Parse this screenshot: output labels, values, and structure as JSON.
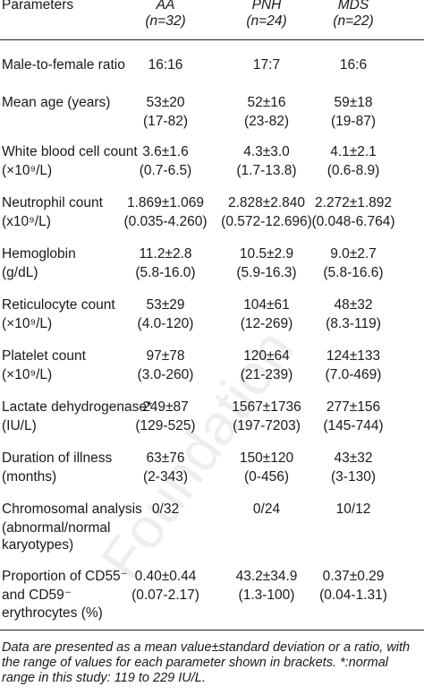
{
  "header": {
    "parameters": "Parameters",
    "aa": "AA",
    "aa_n": "(n=32)",
    "pnh": "PNH",
    "pnh_n": "(n=24)",
    "mds": "MDS",
    "mds_n": "(n=22)"
  },
  "watermark": "Foundation",
  "rows": [
    {
      "label1": "Male-to-female ratio",
      "label2": "",
      "label3": "",
      "aa1": "16:16",
      "aa2": "",
      "pnh1": "17:7",
      "pnh2": "",
      "mds1": "16:6",
      "mds2": ""
    },
    {
      "label1": "Mean age (years)",
      "label2": "",
      "label3": "",
      "aa1": "53±20",
      "aa2": "(17-82)",
      "pnh1": "52±16",
      "pnh2": "(23-82)",
      "mds1": "59±18",
      "mds2": "(19-87)"
    },
    {
      "label1": "White blood cell count",
      "label2": "(×10⁹/L)",
      "label3": "",
      "aa1": "3.6±1.6",
      "aa2": "(0.7-6.5)",
      "pnh1": "4.3±3.0",
      "pnh2": "(1.7-13.8)",
      "mds1": "4.1±2.1",
      "mds2": "(0.6-8.9)"
    },
    {
      "label1": "Neutrophil count",
      "label2": "(x10⁹/L)",
      "label3": "",
      "aa1": "1.869±1.069",
      "aa2": "(0.035-4.260)",
      "pnh1": "2.828±2.840",
      "pnh2": "(0.572-12.696)",
      "mds1": "2.272±1.892",
      "mds2": "(0.048-6.764)"
    },
    {
      "label1": "Hemoglobin",
      "label2": "(g/dL)",
      "label3": "",
      "aa1": "11.2±2.8",
      "aa2": "(5.8-16.0)",
      "pnh1": "10.5±2.9",
      "pnh2": "(5.9-16.3)",
      "mds1": "9.0±2.7",
      "mds2": "(5.8-16.6)"
    },
    {
      "label1": "Reticulocyte count",
      "label2": "(×10⁹/L)",
      "label3": "",
      "aa1": "53±29",
      "aa2": "(4.0-120)",
      "pnh1": "104±61",
      "pnh2": "(12-269)",
      "mds1": "48±32",
      "mds2": "(8.3-119)"
    },
    {
      "label1": "Platelet count",
      "label2": "(×10⁹/L)",
      "label3": "",
      "aa1": "97±78",
      "aa2": "(3.0-260)",
      "pnh1": "120±64",
      "pnh2": "(21-239)",
      "mds1": "124±133",
      "mds2": "(7.0-469)"
    },
    {
      "label1": "Lactate dehydrogenase*",
      "label2": "(IU/L)",
      "label3": "",
      "aa1": "249±87",
      "aa2": "(129-525)",
      "pnh1": "1567±1736",
      "pnh2": "(197-7203)",
      "mds1": "277±156",
      "mds2": "(145-744)"
    },
    {
      "label1": "Duration of illness",
      "label2": "(months)",
      "label3": "",
      "aa1": "63±76",
      "aa2": "(2-343)",
      "pnh1": "150±120",
      "pnh2": "(0-456)",
      "mds1": "43±32",
      "mds2": "(3-130)"
    },
    {
      "label1": "Chromosomal analysis",
      "label2": "(abnormal/normal",
      "label3": "karyotypes)",
      "aa1": "0/32",
      "aa2": "",
      "pnh1": "0/24",
      "pnh2": "",
      "mds1": "10/12",
      "mds2": ""
    },
    {
      "label1": "Proportion of CD55⁻",
      "label2": "and CD59⁻",
      "label3": "erythrocytes (%)",
      "aa1": "0.40±0.44",
      "aa2": "(0.07-2.17)",
      "pnh1": "43.2±34.9",
      "pnh2": "(1.3-100)",
      "mds1": "0.37±0.29",
      "mds2": "(0.04-1.31)"
    }
  ],
  "footnote": "Data are presented as a mean value±standard deviation or a ratio, with the range of values for each parameter shown in brackets. *:normal range in this study: 119 to 229 IU/L."
}
